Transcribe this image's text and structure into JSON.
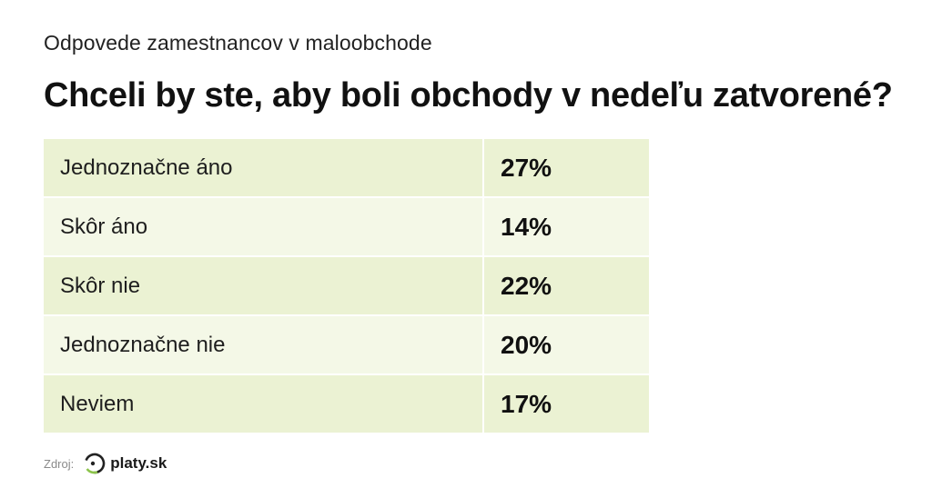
{
  "header": {
    "subtitle": "Odpovede zamestnancov v maloobchode",
    "title": "Chceli by ste, aby boli obchody v nedeľu zatvorené?"
  },
  "chart_data": {
    "type": "table",
    "title": "Chceli by ste, aby boli obchody v nedeľu zatvorené?",
    "subtitle": "Odpovede zamestnancov v maloobchode",
    "rows": [
      {
        "label": "Jednoznačne áno",
        "value": "27%"
      },
      {
        "label": "Skôr áno",
        "value": "14%"
      },
      {
        "label": "Skôr nie",
        "value": "22%"
      },
      {
        "label": "Jednoznačne nie",
        "value": "20%"
      },
      {
        "label": "Neviem",
        "value": "17%"
      }
    ],
    "colors": {
      "row_odd": "#ebf2d3",
      "row_even": "#f4f8e7"
    }
  },
  "footer": {
    "source_label": "Zdroj:",
    "logo_text": "platy.sk",
    "logo_icon": "platy-logo-icon",
    "logo_color": "#8bc34a"
  }
}
